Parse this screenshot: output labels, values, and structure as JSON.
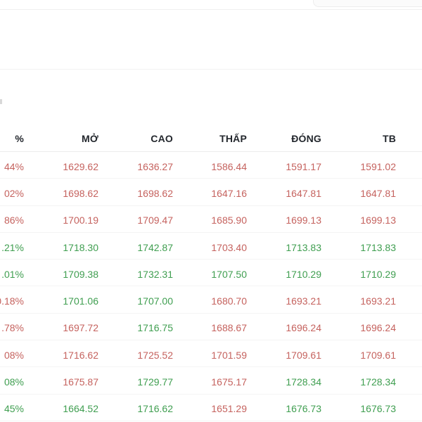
{
  "colors": {
    "up": "#3f9e50",
    "down": "#c5625e",
    "header_text": "#23272d"
  },
  "table": {
    "columns": [
      {
        "key": "pct",
        "label": "%"
      },
      {
        "key": "mo",
        "label": "MỞ"
      },
      {
        "key": "cao",
        "label": "CAO"
      },
      {
        "key": "thap",
        "label": "THẤP"
      },
      {
        "key": "dong",
        "label": "ĐÓNG"
      },
      {
        "key": "tb",
        "label": "TB"
      }
    ],
    "rows": [
      {
        "cells": [
          {
            "text": "44%",
            "trend": "down"
          },
          {
            "text": "1629.62",
            "trend": "down"
          },
          {
            "text": "1636.27",
            "trend": "down"
          },
          {
            "text": "1586.44",
            "trend": "down"
          },
          {
            "text": "1591.17",
            "trend": "down"
          },
          {
            "text": "1591.02",
            "trend": "down"
          }
        ]
      },
      {
        "cells": [
          {
            "text": "02%",
            "trend": "down"
          },
          {
            "text": "1698.62",
            "trend": "down"
          },
          {
            "text": "1698.62",
            "trend": "down"
          },
          {
            "text": "1647.16",
            "trend": "down"
          },
          {
            "text": "1647.81",
            "trend": "down"
          },
          {
            "text": "1647.81",
            "trend": "down"
          }
        ]
      },
      {
        "cells": [
          {
            "text": "86%",
            "trend": "down"
          },
          {
            "text": "1700.19",
            "trend": "down"
          },
          {
            "text": "1709.47",
            "trend": "down"
          },
          {
            "text": "1685.90",
            "trend": "down"
          },
          {
            "text": "1699.13",
            "trend": "down"
          },
          {
            "text": "1699.13",
            "trend": "down"
          }
        ]
      },
      {
        "cells": [
          {
            "text": ".21%",
            "trend": "up"
          },
          {
            "text": "1718.30",
            "trend": "up"
          },
          {
            "text": "1742.87",
            "trend": "up"
          },
          {
            "text": "1703.40",
            "trend": "down"
          },
          {
            "text": "1713.83",
            "trend": "up"
          },
          {
            "text": "1713.83",
            "trend": "up"
          }
        ]
      },
      {
        "cells": [
          {
            "text": ".01%",
            "trend": "up"
          },
          {
            "text": "1709.38",
            "trend": "up"
          },
          {
            "text": "1732.31",
            "trend": "up"
          },
          {
            "text": "1707.50",
            "trend": "up"
          },
          {
            "text": "1710.29",
            "trend": "up"
          },
          {
            "text": "1710.29",
            "trend": "up"
          }
        ]
      },
      {
        "cells": [
          {
            "text": "0.18%",
            "trend": "down"
          },
          {
            "text": "1701.06",
            "trend": "up"
          },
          {
            "text": "1707.00",
            "trend": "up"
          },
          {
            "text": "1680.70",
            "trend": "down"
          },
          {
            "text": "1693.21",
            "trend": "down"
          },
          {
            "text": "1693.21",
            "trend": "down"
          }
        ]
      },
      {
        "cells": [
          {
            "text": ".78%",
            "trend": "down"
          },
          {
            "text": "1697.72",
            "trend": "down"
          },
          {
            "text": "1716.75",
            "trend": "up"
          },
          {
            "text": "1688.67",
            "trend": "down"
          },
          {
            "text": "1696.24",
            "trend": "down"
          },
          {
            "text": "1696.24",
            "trend": "down"
          }
        ]
      },
      {
        "cells": [
          {
            "text": "08%",
            "trend": "down"
          },
          {
            "text": "1716.62",
            "trend": "down"
          },
          {
            "text": "1725.52",
            "trend": "down"
          },
          {
            "text": "1701.59",
            "trend": "down"
          },
          {
            "text": "1709.61",
            "trend": "down"
          },
          {
            "text": "1709.61",
            "trend": "down"
          }
        ]
      },
      {
        "cells": [
          {
            "text": "08%",
            "trend": "up"
          },
          {
            "text": "1675.87",
            "trend": "down"
          },
          {
            "text": "1729.77",
            "trend": "up"
          },
          {
            "text": "1675.17",
            "trend": "down"
          },
          {
            "text": "1728.34",
            "trend": "up"
          },
          {
            "text": "1728.34",
            "trend": "up"
          }
        ]
      },
      {
        "cells": [
          {
            "text": "45%",
            "trend": "up"
          },
          {
            "text": "1664.52",
            "trend": "up"
          },
          {
            "text": "1716.62",
            "trend": "up"
          },
          {
            "text": "1651.29",
            "trend": "down"
          },
          {
            "text": "1676.73",
            "trend": "up"
          },
          {
            "text": "1676.73",
            "trend": "up"
          }
        ]
      }
    ]
  }
}
